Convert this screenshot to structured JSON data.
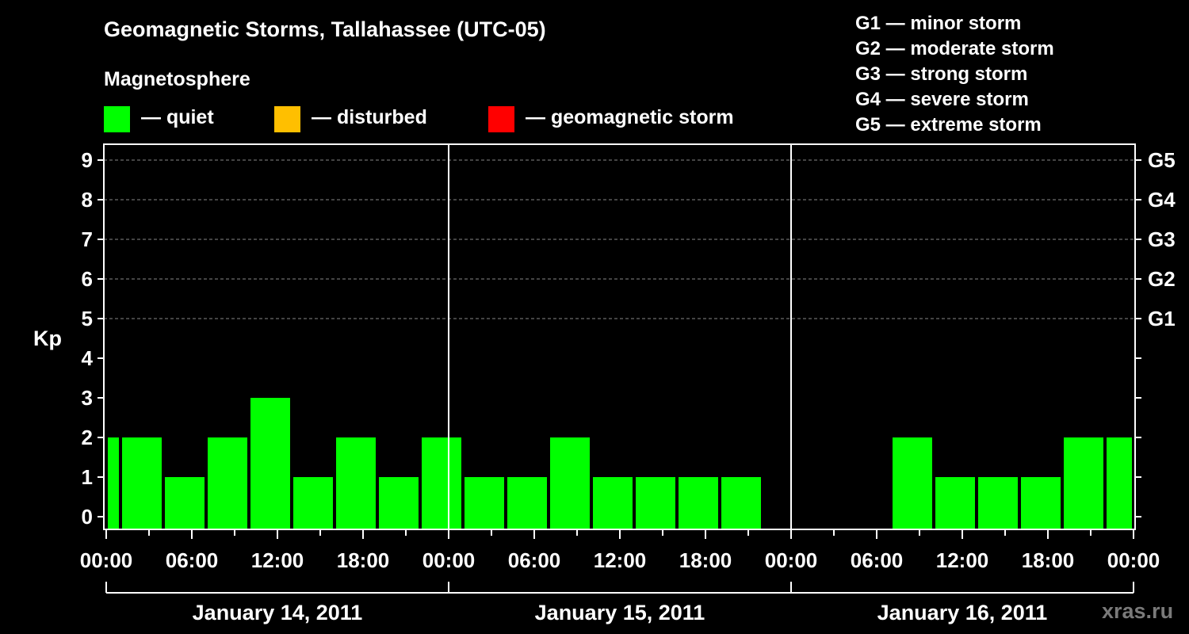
{
  "chart_data": {
    "type": "bar",
    "title": "Geomagnetic Storms, Tallahassee (UTC-05)",
    "subtitle": "Magnetosphere",
    "ylabel": "Kp",
    "ylim": [
      0,
      9
    ],
    "y_ticks": [
      "0",
      "1",
      "2",
      "3",
      "4",
      "5",
      "6",
      "7",
      "8",
      "9"
    ],
    "right_ticks": [
      {
        "value": 5,
        "label": "G1"
      },
      {
        "value": 6,
        "label": "G2"
      },
      {
        "value": 7,
        "label": "G3"
      },
      {
        "value": 8,
        "label": "G4"
      },
      {
        "value": 9,
        "label": "G5"
      }
    ],
    "x_tick_labels": [
      "00:00",
      "06:00",
      "12:00",
      "18:00",
      "00:00",
      "06:00",
      "12:00",
      "18:00",
      "00:00",
      "06:00",
      "12:00",
      "18:00",
      "00:00"
    ],
    "day_labels": [
      "January 14, 2011",
      "January 15, 2011",
      "January 16, 2011"
    ],
    "legend": [
      {
        "label": "— quiet",
        "color": "#00ff00"
      },
      {
        "label": "— disturbed",
        "color": "#ffbf00"
      },
      {
        "label": "— geomagnetic storm",
        "color": "#ff0000"
      }
    ],
    "storm_scale": [
      "G1 — minor storm",
      "G2 — moderate storm",
      "G3 — strong storm",
      "G4 — severe storm",
      "G5 — extreme storm"
    ],
    "bar_color": "#00ff00",
    "x_unit": "hours since January 14, 2011 00:00",
    "bars": [
      {
        "x": 0,
        "x_end": 1,
        "kp": 2
      },
      {
        "x": 1,
        "x_end": 4,
        "kp": 2
      },
      {
        "x": 4,
        "x_end": 7,
        "kp": 1
      },
      {
        "x": 7,
        "x_end": 10,
        "kp": 2
      },
      {
        "x": 10,
        "x_end": 13,
        "kp": 3
      },
      {
        "x": 13,
        "x_end": 16,
        "kp": 1
      },
      {
        "x": 16,
        "x_end": 19,
        "kp": 2
      },
      {
        "x": 19,
        "x_end": 22,
        "kp": 1
      },
      {
        "x": 22,
        "x_end": 25,
        "kp": 2
      },
      {
        "x": 25,
        "x_end": 28,
        "kp": 1
      },
      {
        "x": 28,
        "x_end": 31,
        "kp": 1
      },
      {
        "x": 31,
        "x_end": 34,
        "kp": 2
      },
      {
        "x": 34,
        "x_end": 37,
        "kp": 1
      },
      {
        "x": 37,
        "x_end": 40,
        "kp": 1
      },
      {
        "x": 40,
        "x_end": 43,
        "kp": 1
      },
      {
        "x": 43,
        "x_end": 46,
        "kp": 1
      },
      {
        "x": 55,
        "x_end": 58,
        "kp": 2
      },
      {
        "x": 58,
        "x_end": 61,
        "kp": 1
      },
      {
        "x": 61,
        "x_end": 64,
        "kp": 1
      },
      {
        "x": 64,
        "x_end": 67,
        "kp": 1
      },
      {
        "x": 67,
        "x_end": 70,
        "kp": 2
      },
      {
        "x": 70,
        "x_end": 72,
        "kp": 2
      }
    ]
  },
  "watermark": "xras.ru"
}
